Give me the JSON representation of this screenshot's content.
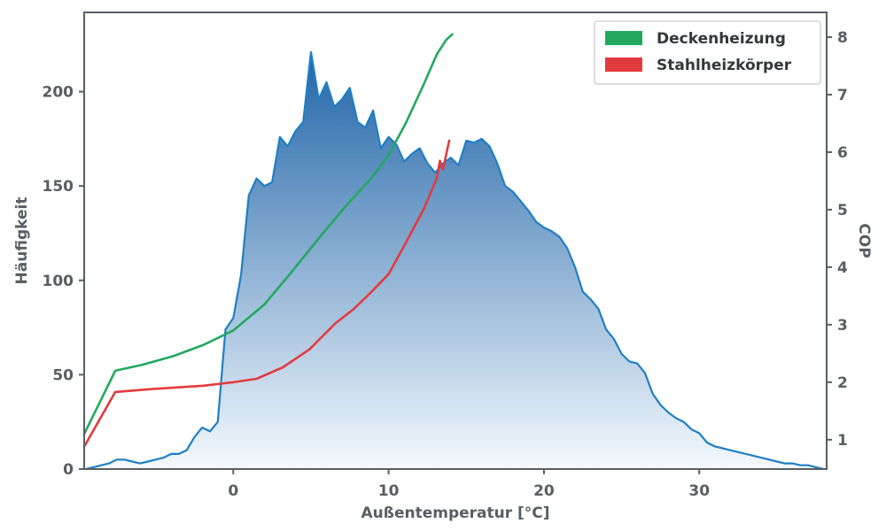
{
  "chart_data": {
    "type": "area",
    "title": "",
    "xlabel": "Außentemperatur [°C]",
    "ylabel_left": "Häufigkeit",
    "ylabel_right": "COP",
    "xlim": [
      -9.6,
      38.2
    ],
    "ylim_left": [
      0,
      242
    ],
    "ylim_right": [
      0.49,
      8.43
    ],
    "xticks": [
      0,
      10,
      20,
      30
    ],
    "yticks_left": [
      0,
      50,
      100,
      150,
      200
    ],
    "yticks_right": [
      1,
      2,
      3,
      4,
      5,
      6,
      7,
      8
    ],
    "grid": false,
    "legend_position": "upper right",
    "colors": {
      "area_line": "#1f7fc4",
      "area_top": "#0d57a0",
      "area_bottom": "#f4f9fd",
      "green": "#22a95f",
      "red": "#e23b3e",
      "axis": "#585e63"
    },
    "frequency": {
      "name": "Häufigkeit",
      "x0": -9.5,
      "dx": 0.5,
      "y": [
        0,
        1,
        2,
        3,
        5,
        5,
        4,
        3,
        4,
        5,
        6,
        8,
        8,
        10,
        17,
        22,
        20,
        25,
        74,
        80,
        103,
        145,
        154,
        150,
        152,
        176,
        171,
        179,
        184,
        221,
        196,
        205,
        192,
        196,
        202,
        184,
        181,
        190,
        170,
        176,
        172,
        163,
        167,
        170,
        162,
        157,
        162,
        165,
        161,
        174,
        173,
        175,
        171,
        162,
        150,
        147,
        142,
        137,
        131,
        128,
        126,
        123,
        117,
        107,
        94,
        90,
        85,
        74,
        69,
        61,
        57,
        56,
        51,
        40,
        34,
        30,
        27,
        25,
        21,
        19,
        14,
        12,
        11,
        10,
        9,
        8,
        7,
        6,
        5,
        4,
        3,
        3,
        2,
        2,
        1,
        0
      ]
    },
    "series": [
      {
        "name": "Deckenheizung",
        "color_key": "green",
        "x": [
          -9.6,
          -7.6,
          -5.9,
          -3.9,
          -1.9,
          0,
          2,
          3.7,
          5.5,
          7.2,
          8.9,
          10,
          11.1,
          12.3,
          13.1,
          13.7,
          14.1
        ],
        "y": [
          1.1,
          2.2,
          2.3,
          2.45,
          2.65,
          2.9,
          3.35,
          3.9,
          4.5,
          5.05,
          5.55,
          5.95,
          6.5,
          7.2,
          7.7,
          7.95,
          8.05
        ]
      },
      {
        "name": "Stahlheizkörper",
        "color_key": "red",
        "x": [
          -9.6,
          -7.6,
          -5.3,
          -1.9,
          0,
          1.5,
          3.2,
          4.9,
          6.6,
          7.7,
          8.9,
          10,
          11.1,
          12.3,
          13.1,
          13.3,
          13.5,
          13.9
        ],
        "y": [
          0.88,
          1.83,
          1.88,
          1.94,
          2.0,
          2.06,
          2.26,
          2.57,
          3.03,
          3.26,
          3.57,
          3.88,
          4.42,
          5.03,
          5.55,
          5.85,
          5.7,
          6.2
        ]
      }
    ]
  }
}
